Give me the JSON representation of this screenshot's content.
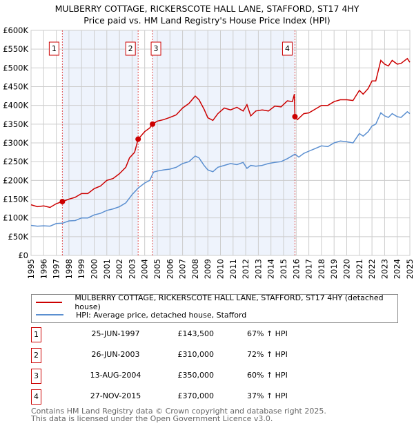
{
  "title_line1": "MULBERRY COTTAGE, RICKERSCOTE HALL LANE, STAFFORD, ST17 4HY",
  "title_line2": "Price paid vs. HM Land Registry's House Price Index (HPI)",
  "chart_data": {
    "type": "line",
    "title": "MULBERRY COTTAGE, RICKERSCOTE HALL LANE, STAFFORD, ST17 4HY — Price paid vs. HM Land Registry's House Price Index (HPI)",
    "xlim": [
      1995,
      2025
    ],
    "ylim": [
      0,
      600000
    ],
    "yticks": [
      0,
      50000,
      100000,
      150000,
      200000,
      250000,
      300000,
      350000,
      400000,
      450000,
      500000,
      550000,
      600000
    ],
    "ytick_labels": [
      "£0",
      "£50K",
      "£100K",
      "£150K",
      "£200K",
      "£250K",
      "£300K",
      "£350K",
      "£400K",
      "£450K",
      "£500K",
      "£550K",
      "£600K"
    ],
    "xticks": [
      1995,
      1996,
      1997,
      1998,
      1999,
      2000,
      2001,
      2002,
      2003,
      2004,
      2005,
      2006,
      2007,
      2008,
      2009,
      2010,
      2011,
      2012,
      2013,
      2014,
      2015,
      2016,
      2017,
      2018,
      2019,
      2020,
      2021,
      2022,
      2023,
      2024,
      2025
    ],
    "grid": true,
    "series": [
      {
        "name": "MULBERRY COTTAGE, RICKERSCOTE HALL LANE, STAFFORD, ST17 4HY (detached house)",
        "color": "#cc0000",
        "x": [
          1995,
          1995.5,
          1996,
          1996.5,
          1997,
          1997.48,
          1998,
          1998.5,
          1999,
          1999.5,
          2000,
          2000.5,
          2001,
          2001.5,
          2002,
          2002.5,
          2002.8,
          2003.2,
          2003.48,
          2004,
          2004.4,
          2004.62,
          2005,
          2005.5,
          2006,
          2006.5,
          2007,
          2007.5,
          2008,
          2008.3,
          2008.7,
          2009,
          2009.4,
          2009.8,
          2010.3,
          2010.8,
          2011.3,
          2011.8,
          2012.1,
          2012.4,
          2012.8,
          2013.3,
          2013.8,
          2014.3,
          2014.8,
          2015.3,
          2015.7,
          2015.85,
          2015.9,
          2016.1,
          2016.6,
          2017,
          2017.5,
          2018,
          2018.5,
          2019,
          2019.5,
          2020,
          2020.5,
          2021,
          2021.3,
          2021.7,
          2022,
          2022.3,
          2022.7,
          2023,
          2023.3,
          2023.6,
          2024,
          2024.3,
          2024.8,
          2025
        ],
        "y": [
          135000,
          130000,
          132000,
          128000,
          138000,
          143500,
          150000,
          155000,
          165000,
          165000,
          178000,
          185000,
          200000,
          205000,
          218000,
          235000,
          260000,
          275000,
          310000,
          330000,
          340000,
          350000,
          358000,
          362000,
          368000,
          375000,
          393000,
          405000,
          425000,
          415000,
          390000,
          367000,
          360000,
          378000,
          393000,
          388000,
          395000,
          385000,
          402000,
          372000,
          385000,
          388000,
          385000,
          398000,
          396000,
          412000,
          410000,
          430000,
          370000,
          362000,
          378000,
          380000,
          390000,
          400000,
          400000,
          410000,
          415000,
          415000,
          413000,
          440000,
          430000,
          445000,
          465000,
          465000,
          520000,
          510000,
          505000,
          520000,
          510000,
          512000,
          525000,
          515000
        ]
      },
      {
        "name": "HPI: Average price, detached house, Stafford",
        "color": "#5b8fd0",
        "x": [
          1995,
          1995.5,
          1996,
          1996.5,
          1997,
          1997.5,
          1998,
          1998.5,
          1999,
          1999.5,
          2000,
          2000.5,
          2001,
          2001.5,
          2002,
          2002.5,
          2003,
          2003.5,
          2004,
          2004.4,
          2004.7,
          2005,
          2005.5,
          2006,
          2006.5,
          2007,
          2007.5,
          2008,
          2008.3,
          2008.7,
          2009,
          2009.4,
          2009.8,
          2010.3,
          2010.8,
          2011.3,
          2011.8,
          2012.1,
          2012.4,
          2012.8,
          2013.3,
          2013.8,
          2014.3,
          2014.8,
          2015.3,
          2015.9,
          2016.2,
          2016.6,
          2017,
          2017.5,
          2018,
          2018.5,
          2019,
          2019.5,
          2020,
          2020.5,
          2021,
          2021.3,
          2021.7,
          2022,
          2022.3,
          2022.7,
          2023,
          2023.3,
          2023.6,
          2024,
          2024.3,
          2024.8,
          2025
        ],
        "y": [
          80000,
          78000,
          79000,
          78000,
          85000,
          86000,
          92000,
          93000,
          100000,
          100000,
          108000,
          112000,
          120000,
          124000,
          130000,
          140000,
          162000,
          180000,
          193000,
          200000,
          222000,
          225000,
          228000,
          230000,
          235000,
          245000,
          250000,
          265000,
          260000,
          240000,
          228000,
          223000,
          235000,
          240000,
          245000,
          242000,
          248000,
          232000,
          240000,
          238000,
          240000,
          245000,
          248000,
          250000,
          258000,
          270000,
          262000,
          272000,
          278000,
          285000,
          292000,
          290000,
          300000,
          305000,
          303000,
          300000,
          325000,
          318000,
          330000,
          345000,
          350000,
          380000,
          372000,
          368000,
          378000,
          370000,
          368000,
          383000,
          378000
        ]
      }
    ],
    "sales": [
      {
        "label": "1",
        "x": 1997.48,
        "y": 143500
      },
      {
        "label": "2",
        "x": 2003.48,
        "y": 310000
      },
      {
        "label": "3",
        "x": 2004.62,
        "y": 350000
      },
      {
        "label": "4",
        "x": 2015.9,
        "y": 370000
      }
    ]
  },
  "legend": [
    {
      "label": "MULBERRY COTTAGE, RICKERSCOTE HALL LANE, STAFFORD, ST17 4HY (detached house)",
      "color": "#cc0000"
    },
    {
      "label": "HPI: Average price, detached house, Stafford",
      "color": "#5b8fd0"
    }
  ],
  "transactions": [
    {
      "num": "1",
      "date": "25-JUN-1997",
      "price": "£143,500",
      "hpi": "67% ↑ HPI"
    },
    {
      "num": "2",
      "date": "26-JUN-2003",
      "price": "£310,000",
      "hpi": "72% ↑ HPI"
    },
    {
      "num": "3",
      "date": "13-AUG-2004",
      "price": "£350,000",
      "hpi": "60% ↑ HPI"
    },
    {
      "num": "4",
      "date": "27-NOV-2015",
      "price": "£370,000",
      "hpi": "37% ↑ HPI"
    }
  ],
  "footer_line1": "Contains HM Land Registry data © Crown copyright and database right 2025.",
  "footer_line2": "This data is licensed under the Open Government Licence v3.0."
}
